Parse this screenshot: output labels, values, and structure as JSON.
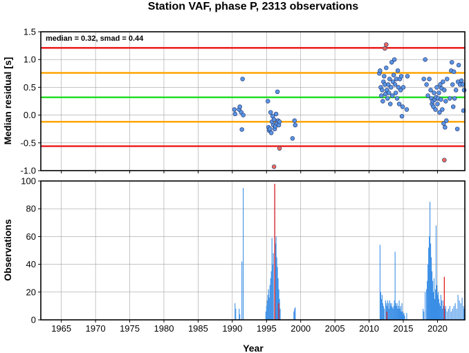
{
  "chart_data": [
    {
      "type": "scatter",
      "title": "Station VAF, phase P, 2313 observations",
      "ylabel": "Median residual [s]",
      "annotation": "median = 0.32, smad = 0.44",
      "xlim": [
        1962,
        2024
      ],
      "ylim": [
        -1.0,
        1.5
      ],
      "yticks": [
        -1.0,
        -0.5,
        0.0,
        0.5,
        1.0,
        1.5
      ],
      "ytick_labels": [
        "-1.0",
        "-0.5",
        "0.0",
        "0.5",
        "1.0",
        "1.5"
      ],
      "grid": true,
      "reference_lines": [
        {
          "y": 1.21,
          "color": "#ee2222"
        },
        {
          "y": 0.76,
          "color": "#ffa500"
        },
        {
          "y": 0.32,
          "color": "#22dd22"
        },
        {
          "y": -0.12,
          "color": "#ffa500"
        },
        {
          "y": -0.56,
          "color": "#ee2222"
        }
      ],
      "series": [
        {
          "color": "#5a96e6",
          "points": [
            [
              1990.3,
              0.1
            ],
            [
              1990.4,
              0.02
            ],
            [
              1991.0,
              0.1
            ],
            [
              1991.1,
              0.15
            ],
            [
              1991.3,
              0.05
            ],
            [
              1991.4,
              -0.26
            ],
            [
              1991.5,
              0.65
            ],
            [
              1991.6,
              0.0
            ],
            [
              1995.2,
              0.25
            ],
            [
              1995.3,
              -0.22
            ],
            [
              1995.4,
              -0.28
            ],
            [
              1995.5,
              -0.25
            ],
            [
              1995.6,
              0.05
            ],
            [
              1995.7,
              -0.32
            ],
            [
              1995.8,
              -0.12
            ],
            [
              1995.9,
              -0.02
            ],
            [
              1996.0,
              -0.18
            ],
            [
              1996.1,
              -0.08
            ],
            [
              1996.2,
              -0.25
            ],
            [
              1996.3,
              -0.2
            ],
            [
              1996.4,
              0.02
            ],
            [
              1996.5,
              -0.15
            ],
            [
              1996.6,
              0.42
            ],
            [
              1996.7,
              -0.1
            ],
            [
              1996.8,
              -0.18
            ],
            [
              1996.9,
              -0.12
            ],
            [
              1998.8,
              -0.42
            ],
            [
              1999.1,
              -0.1
            ],
            [
              1999.2,
              -0.18
            ],
            [
              2011.5,
              0.75
            ],
            [
              2011.6,
              0.8
            ],
            [
              2011.7,
              0.5
            ],
            [
              2011.8,
              0.35
            ],
            [
              2011.9,
              0.45
            ],
            [
              2012.0,
              0.25
            ],
            [
              2012.1,
              0.6
            ],
            [
              2012.2,
              0.7
            ],
            [
              2012.3,
              0.55
            ],
            [
              2012.4,
              0.38
            ],
            [
              2012.5,
              0.85
            ],
            [
              2012.6,
              0.45
            ],
            [
              2012.7,
              0.3
            ],
            [
              2012.8,
              0.55
            ],
            [
              2012.9,
              0.4
            ],
            [
              2013.0,
              0.65
            ],
            [
              2013.1,
              0.2
            ],
            [
              2013.2,
              0.5
            ],
            [
              2013.3,
              0.95
            ],
            [
              2013.4,
              0.35
            ],
            [
              2013.5,
              0.6
            ],
            [
              2013.6,
              0.72
            ],
            [
              2013.7,
              1.0
            ],
            [
              2013.8,
              0.55
            ],
            [
              2013.9,
              0.4
            ],
            [
              2014.0,
              0.65
            ],
            [
              2014.1,
              0.3
            ],
            [
              2014.2,
              0.8
            ],
            [
              2014.3,
              0.5
            ],
            [
              2014.4,
              0.2
            ],
            [
              2014.5,
              0.65
            ],
            [
              2014.6,
              0.45
            ],
            [
              2014.7,
              0.7
            ],
            [
              2014.8,
              -0.02
            ],
            [
              2014.9,
              0.15
            ],
            [
              2015.0,
              0.5
            ],
            [
              2015.5,
              0.1
            ],
            [
              2015.6,
              0.7
            ],
            [
              2018.0,
              0.65
            ],
            [
              2018.2,
              1.0
            ],
            [
              2018.4,
              0.55
            ],
            [
              2018.6,
              0.35
            ],
            [
              2018.8,
              0.65
            ],
            [
              2019.0,
              0.45
            ],
            [
              2019.1,
              0.3
            ],
            [
              2019.2,
              0.2
            ],
            [
              2019.3,
              0.25
            ],
            [
              2019.4,
              0.15
            ],
            [
              2019.5,
              0.4
            ],
            [
              2019.6,
              0.28
            ],
            [
              2019.7,
              0.1
            ],
            [
              2019.8,
              0.32
            ],
            [
              2019.9,
              0.5
            ],
            [
              2020.0,
              0.2
            ],
            [
              2020.1,
              0.3
            ],
            [
              2020.2,
              0.4
            ],
            [
              2020.3,
              0.05
            ],
            [
              2020.4,
              0.55
            ],
            [
              2020.5,
              0.28
            ],
            [
              2020.6,
              0.48
            ],
            [
              2020.7,
              0.1
            ],
            [
              2020.8,
              0.6
            ],
            [
              2020.9,
              -0.15
            ],
            [
              2021.0,
              0.45
            ],
            [
              2021.1,
              -0.22
            ],
            [
              2021.2,
              0.25
            ],
            [
              2021.3,
              -0.1
            ],
            [
              2021.4,
              0.65
            ],
            [
              2021.8,
              0.3
            ],
            [
              2022.0,
              0.8
            ],
            [
              2022.1,
              0.95
            ],
            [
              2022.2,
              0.55
            ],
            [
              2022.3,
              0.15
            ],
            [
              2022.4,
              0.78
            ],
            [
              2022.5,
              0.3
            ],
            [
              2022.7,
              0.45
            ],
            [
              2022.9,
              -0.25
            ],
            [
              2023.0,
              0.6
            ],
            [
              2023.1,
              0.9
            ],
            [
              2023.3,
              0.55
            ],
            [
              2023.5,
              0.62
            ],
            [
              2023.7,
              0.55
            ],
            [
              2023.8,
              0.08
            ],
            [
              2023.9,
              0.45
            ]
          ]
        },
        {
          "color": "#f06b5b",
          "points": [
            [
              1996.1,
              -0.93
            ],
            [
              1996.9,
              -0.6
            ],
            [
              2012.3,
              1.2
            ],
            [
              2012.5,
              1.27
            ],
            [
              2021.0,
              -0.81
            ]
          ]
        }
      ]
    },
    {
      "type": "bar",
      "ylabel": "Observations",
      "xlabel": "Year",
      "xlim": [
        1962,
        2024
      ],
      "xticks": [
        1965,
        1970,
        1975,
        1980,
        1985,
        1990,
        1995,
        2000,
        2005,
        2010,
        2015,
        2020
      ],
      "xtick_labels": [
        "1965",
        "1970",
        "1975",
        "1980",
        "1985",
        "1990",
        "1995",
        "2000",
        "2005",
        "2010",
        "2015",
        "2020"
      ],
      "ylim": [
        0,
        100
      ],
      "yticks": [
        0,
        20,
        40,
        60,
        80,
        100
      ],
      "ytick_labels": [
        "0",
        "20",
        "40",
        "60",
        "80",
        "100"
      ],
      "grid": true,
      "series": [
        {
          "color": "#3a8ee6",
          "bars": [
            [
              1990.4,
              12
            ],
            [
              1990.5,
              8
            ],
            [
              1991.0,
              8
            ],
            [
              1991.1,
              4
            ],
            [
              1991.4,
              42
            ],
            [
              1991.6,
              95
            ],
            [
              1994.9,
              6
            ],
            [
              1995.0,
              10
            ],
            [
              1995.1,
              14
            ],
            [
              1995.2,
              18
            ],
            [
              1995.3,
              22
            ],
            [
              1995.4,
              16
            ],
            [
              1995.5,
              25
            ],
            [
              1995.6,
              30
            ],
            [
              1995.7,
              35
            ],
            [
              1995.8,
              59
            ],
            [
              1995.9,
              40
            ],
            [
              1996.0,
              48
            ],
            [
              1996.2,
              94
            ],
            [
              1996.3,
              55
            ],
            [
              1996.4,
              60
            ],
            [
              1996.5,
              45
            ],
            [
              1996.6,
              38
            ],
            [
              1996.7,
              30
            ],
            [
              1996.8,
              22
            ],
            [
              1996.9,
              15
            ],
            [
              1997.0,
              8
            ],
            [
              1999.0,
              6
            ],
            [
              1999.1,
              8
            ],
            [
              1999.2,
              9
            ],
            [
              2011.6,
              54
            ],
            [
              2011.7,
              20
            ],
            [
              2011.8,
              15
            ],
            [
              2011.9,
              18
            ],
            [
              2012.0,
              12
            ],
            [
              2012.1,
              10
            ],
            [
              2012.2,
              8
            ],
            [
              2012.4,
              14
            ],
            [
              2012.5,
              12
            ],
            [
              2012.6,
              10
            ],
            [
              2012.7,
              14
            ],
            [
              2012.8,
              12
            ],
            [
              2012.9,
              8
            ],
            [
              2013.0,
              14
            ],
            [
              2013.1,
              12
            ],
            [
              2013.2,
              10
            ],
            [
              2013.3,
              12
            ],
            [
              2013.4,
              9
            ],
            [
              2013.5,
              8
            ],
            [
              2013.6,
              10
            ],
            [
              2013.7,
              14
            ],
            [
              2013.8,
              49
            ],
            [
              2013.9,
              12
            ],
            [
              2014.0,
              10
            ],
            [
              2014.1,
              12
            ],
            [
              2014.2,
              8
            ],
            [
              2014.3,
              10
            ],
            [
              2014.4,
              14
            ],
            [
              2014.5,
              8
            ],
            [
              2014.6,
              10
            ],
            [
              2014.7,
              6
            ],
            [
              2014.8,
              12
            ],
            [
              2014.9,
              6
            ],
            [
              2015.0,
              4
            ],
            [
              2015.1,
              5
            ],
            [
              2015.2,
              3
            ],
            [
              2015.5,
              5
            ],
            [
              2017.9,
              8
            ],
            [
              2018.0,
              6
            ],
            [
              2018.2,
              20
            ],
            [
              2018.4,
              22
            ],
            [
              2018.5,
              28
            ],
            [
              2018.6,
              40
            ],
            [
              2018.7,
              52
            ],
            [
              2018.8,
              60
            ],
            [
              2018.9,
              85
            ],
            [
              2019.0,
              55
            ],
            [
              2019.1,
              45
            ],
            [
              2019.2,
              35
            ],
            [
              2019.3,
              28
            ],
            [
              2019.4,
              20
            ],
            [
              2019.5,
              30
            ],
            [
              2019.6,
              15
            ],
            [
              2019.7,
              22
            ],
            [
              2019.8,
              68
            ],
            [
              2019.9,
              25
            ],
            [
              2020.0,
              18
            ],
            [
              2020.1,
              20
            ],
            [
              2020.2,
              15
            ],
            [
              2020.3,
              12
            ],
            [
              2020.4,
              10
            ],
            [
              2020.5,
              18
            ],
            [
              2020.6,
              14
            ],
            [
              2020.7,
              8
            ],
            [
              2020.8,
              14
            ],
            [
              2020.9,
              10
            ],
            [
              2021.1,
              8
            ],
            [
              2021.2,
              10
            ],
            [
              2021.4,
              6
            ],
            [
              2021.6,
              8
            ],
            [
              2021.8,
              10
            ],
            [
              2022.0,
              6
            ],
            [
              2022.2,
              8
            ],
            [
              2022.4,
              10
            ],
            [
              2022.6,
              12
            ],
            [
              2022.8,
              8
            ],
            [
              2023.0,
              18
            ],
            [
              2023.2,
              14
            ],
            [
              2023.4,
              12
            ],
            [
              2023.6,
              16
            ],
            [
              2023.8,
              10
            ],
            [
              2023.9,
              8
            ]
          ]
        },
        {
          "color": "#e02020",
          "bars": [
            [
              1996.2,
              98
            ],
            [
              1996.8,
              12
            ],
            [
              2012.6,
              6
            ],
            [
              2021.0,
              31
            ]
          ]
        }
      ]
    }
  ]
}
